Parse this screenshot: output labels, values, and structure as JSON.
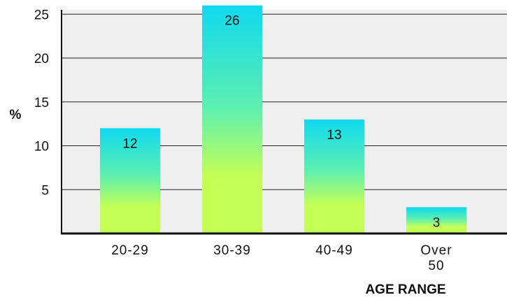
{
  "chart_data": {
    "type": "bar",
    "categories": [
      "20-29",
      "30-39",
      "40-49",
      "Over 50"
    ],
    "values": [
      12,
      26,
      13,
      3
    ],
    "data_labels": [
      "12",
      "26",
      "13",
      "3"
    ],
    "title": "",
    "xlabel": "AGE RANGE",
    "ylabel": "%",
    "yticks": [
      5,
      10,
      15,
      20,
      25
    ],
    "ylim": [
      0,
      25.5
    ],
    "grid": true,
    "colors": {
      "plot_background": "#efefef",
      "gridline": "#222222",
      "bar_top": "#0fd9f0",
      "bar_bottom": "#c4ff55"
    }
  }
}
